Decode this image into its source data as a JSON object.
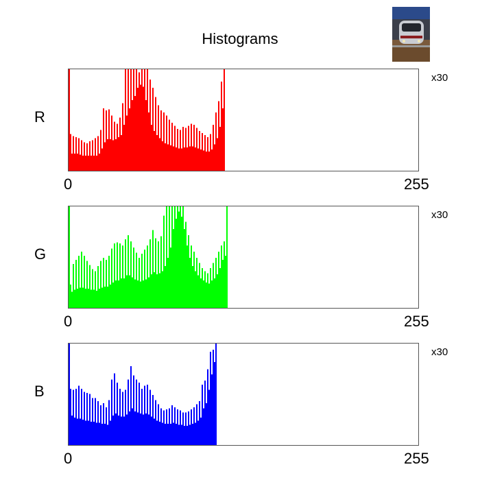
{
  "title": "Histograms",
  "thumbnail": {
    "icon": "train-photo-thumbnail"
  },
  "chart_data": [
    {
      "type": "bar",
      "name": "R",
      "color": "#ff0000",
      "x_min_label": "0",
      "x_max_label": "255",
      "scale_label": "x30",
      "xlim": [
        0,
        255
      ],
      "ylim": [
        0,
        1
      ],
      "values": [
        1.0,
        0.37,
        0.18,
        0.35,
        0.18,
        0.34,
        0.18,
        0.33,
        0.17,
        0.31,
        0.16,
        0.29,
        0.16,
        0.28,
        0.16,
        0.3,
        0.16,
        0.31,
        0.16,
        0.33,
        0.16,
        0.35,
        0.18,
        0.41,
        0.23,
        0.62,
        0.29,
        0.6,
        0.32,
        0.61,
        0.32,
        0.55,
        0.31,
        0.49,
        0.32,
        0.47,
        0.34,
        0.53,
        0.36,
        0.67,
        0.46,
        1.0,
        0.55,
        1.0,
        0.62,
        1.0,
        0.7,
        1.0,
        0.74,
        1.0,
        0.82,
        0.97,
        0.85,
        1.0,
        0.83,
        1.0,
        0.7,
        1.0,
        0.58,
        0.9,
        0.46,
        0.82,
        0.4,
        0.73,
        0.36,
        0.65,
        0.33,
        0.6,
        0.3,
        0.58,
        0.28,
        0.55,
        0.27,
        0.51,
        0.26,
        0.48,
        0.25,
        0.45,
        0.24,
        0.42,
        0.23,
        0.41,
        0.23,
        0.44,
        0.24,
        0.43,
        0.24,
        0.45,
        0.25,
        0.47,
        0.25,
        0.46,
        0.24,
        0.43,
        0.23,
        0.4,
        0.22,
        0.38,
        0.21,
        0.36,
        0.2,
        0.34,
        0.2,
        0.37,
        0.22,
        0.46,
        0.27,
        0.58,
        0.33,
        0.69,
        0.44,
        0.88,
        0.62,
        1.0
      ]
    },
    {
      "type": "bar",
      "name": "G",
      "color": "#00ff00",
      "x_min_label": "0",
      "x_max_label": "255",
      "scale_label": "x30",
      "xlim": [
        0,
        255
      ],
      "ylim": [
        0,
        1
      ],
      "values": [
        1.0,
        0.24,
        0.17,
        0.44,
        0.19,
        0.48,
        0.2,
        0.52,
        0.21,
        0.56,
        0.21,
        0.52,
        0.2,
        0.47,
        0.2,
        0.43,
        0.19,
        0.39,
        0.19,
        0.37,
        0.18,
        0.42,
        0.2,
        0.47,
        0.21,
        0.5,
        0.22,
        0.48,
        0.22,
        0.52,
        0.24,
        0.59,
        0.26,
        0.64,
        0.28,
        0.65,
        0.28,
        0.64,
        0.3,
        0.62,
        0.3,
        0.68,
        0.33,
        0.72,
        0.33,
        0.66,
        0.31,
        0.6,
        0.29,
        0.55,
        0.28,
        0.5,
        0.27,
        0.54,
        0.28,
        0.58,
        0.29,
        0.62,
        0.31,
        0.68,
        0.34,
        0.77,
        0.36,
        0.69,
        0.34,
        0.66,
        0.35,
        0.71,
        0.37,
        0.91,
        0.42,
        1.0,
        0.5,
        1.0,
        0.6,
        1.0,
        0.78,
        1.0,
        0.88,
        1.0,
        0.95,
        1.0,
        0.9,
        1.0,
        0.78,
        0.85,
        0.62,
        0.72,
        0.5,
        0.62,
        0.42,
        0.56,
        0.37,
        0.5,
        0.33,
        0.45,
        0.3,
        0.4,
        0.28,
        0.37,
        0.26,
        0.35,
        0.25,
        0.4,
        0.28,
        0.45,
        0.3,
        0.5,
        0.34,
        0.56,
        0.4,
        0.62,
        0.48,
        0.66,
        0.52,
        1.0
      ]
    },
    {
      "type": "bar",
      "name": "B",
      "color": "#0000ff",
      "x_min_label": "0",
      "x_max_label": "255",
      "scale_label": "x30",
      "xlim": [
        0,
        255
      ],
      "ylim": [
        0,
        1
      ],
      "values": [
        1.0,
        0.56,
        0.3,
        0.55,
        0.28,
        0.56,
        0.27,
        0.59,
        0.27,
        0.56,
        0.26,
        0.53,
        0.25,
        0.52,
        0.25,
        0.51,
        0.24,
        0.47,
        0.24,
        0.47,
        0.23,
        0.44,
        0.23,
        0.4,
        0.22,
        0.42,
        0.22,
        0.38,
        0.21,
        0.45,
        0.25,
        0.65,
        0.3,
        0.71,
        0.32,
        0.62,
        0.3,
        0.56,
        0.29,
        0.53,
        0.29,
        0.55,
        0.31,
        0.65,
        0.34,
        0.78,
        0.37,
        0.69,
        0.34,
        0.65,
        0.33,
        0.62,
        0.32,
        0.56,
        0.31,
        0.59,
        0.32,
        0.6,
        0.31,
        0.55,
        0.29,
        0.5,
        0.27,
        0.45,
        0.25,
        0.41,
        0.24,
        0.37,
        0.23,
        0.35,
        0.22,
        0.36,
        0.22,
        0.37,
        0.22,
        0.4,
        0.23,
        0.38,
        0.22,
        0.36,
        0.21,
        0.35,
        0.21,
        0.33,
        0.2,
        0.33,
        0.2,
        0.34,
        0.21,
        0.36,
        0.22,
        0.38,
        0.23,
        0.41,
        0.25,
        0.44,
        0.28,
        0.6,
        0.37,
        0.64,
        0.42,
        0.75,
        0.55,
        0.92,
        0.7,
        0.94,
        0.82,
        1.0
      ]
    }
  ]
}
